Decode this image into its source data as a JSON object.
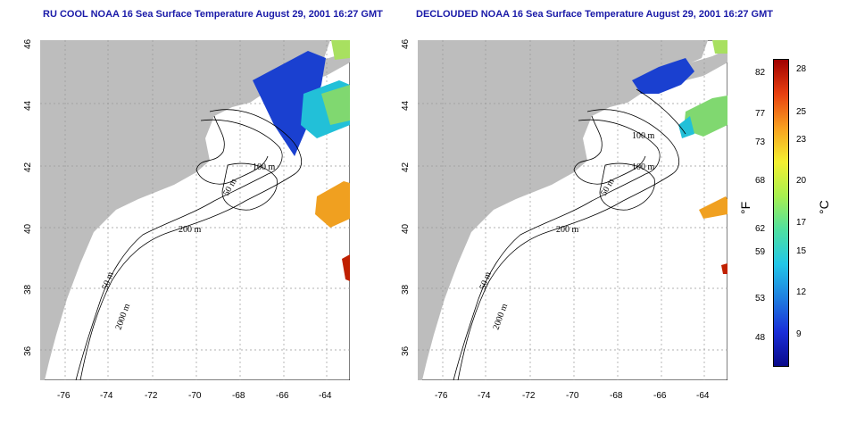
{
  "titles": {
    "left": "RU COOL NOAA 16 Sea Surface Temperature August 29, 2001 16:27 GMT",
    "right": "DECLOUDED NOAA 16 Sea Surface Temperature August 29, 2001 16:27 GMT"
  },
  "lon_ticks": [
    "-76",
    "-74",
    "-72",
    "-70",
    "-68",
    "-66",
    "-64"
  ],
  "lat_ticks": [
    "46",
    "44",
    "42",
    "40",
    "38",
    "36"
  ],
  "contour_labels": [
    "100 m",
    "50 m",
    "200 m",
    "50 m",
    "2000 m"
  ],
  "colorbar": {
    "fahrenheit_ticks": [
      "82",
      "77",
      "73",
      "68",
      "62",
      "59",
      "53",
      "48"
    ],
    "celsius_ticks": [
      "28",
      "25",
      "23",
      "20",
      "17",
      "15",
      "12",
      "9"
    ],
    "unit_f": "°F",
    "unit_c": "°C",
    "colors": [
      "#0a0a8a",
      "#1a2ed8",
      "#1f7fe0",
      "#22c7e8",
      "#4fe0a0",
      "#a8f050",
      "#f4f030",
      "#f8a020",
      "#e84010",
      "#a00000"
    ]
  },
  "colors": {
    "land": "#bdbdbd",
    "title": "#1a1aa8",
    "grid": "#999999"
  }
}
